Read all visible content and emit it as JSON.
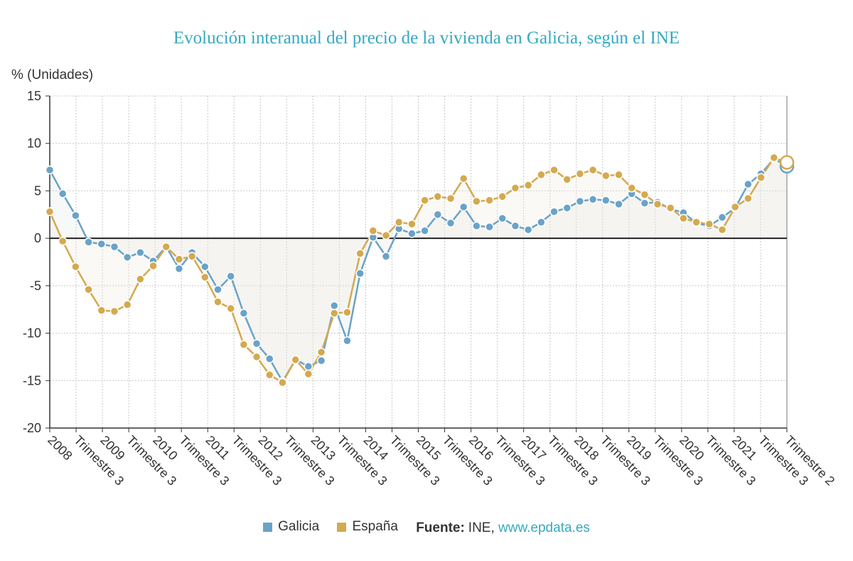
{
  "chart_data": {
    "type": "line",
    "title": "Evolución interanual del precio de la vivienda en Galicia, según el INE",
    "ylabel": "% (Unidades)",
    "ylim": [
      -20,
      15
    ],
    "yticks": [
      15,
      10,
      5,
      0,
      -5,
      -10,
      -15,
      -20
    ],
    "grid": true,
    "xtick_labels": [
      "2008",
      "Trimestre 3",
      "2009",
      "Trimestre 3",
      "2010",
      "Trimestre 3",
      "2011",
      "Trimestre 3",
      "2012",
      "Trimestre 3",
      "2013",
      "Trimestre 3",
      "2014",
      "Trimestre 3",
      "2015",
      "Trimestre 3",
      "2016",
      "Trimestre 3",
      "2017",
      "Trimestre 3",
      "2018",
      "Trimestre 3",
      "2019",
      "Trimestre 3",
      "2020",
      "Trimestre 3",
      "2021",
      "Trimestre 3",
      "Trimestre 2"
    ],
    "series": [
      {
        "name": "Galicia",
        "color": "#6aa3c8",
        "values": [
          7.2,
          4.7,
          2.4,
          -0.4,
          -0.6,
          -0.9,
          -2.0,
          -1.5,
          -2.4,
          -0.9,
          -3.2,
          -1.5,
          -3.0,
          -5.4,
          -4.0,
          -7.9,
          -11.1,
          -12.7,
          -15.1,
          -12.8,
          -13.5,
          -12.9,
          -7.1,
          -10.8,
          -3.7,
          0.1,
          -1.9,
          1.0,
          0.5,
          0.8,
          2.5,
          1.6,
          3.3,
          1.3,
          1.2,
          2.1,
          1.3,
          0.9,
          1.7,
          2.8,
          3.2,
          3.9,
          4.1,
          4.0,
          3.6,
          4.7,
          3.7,
          3.8,
          3.1,
          2.7,
          1.6,
          1.3,
          2.2,
          3.2,
          5.7,
          6.8,
          8.4,
          7.6
        ]
      },
      {
        "name": "España",
        "color": "#d4a94f",
        "values": [
          2.8,
          -0.3,
          -3.0,
          -5.4,
          -7.6,
          -7.7,
          -7.0,
          -4.3,
          -2.9,
          -0.9,
          -2.2,
          -1.9,
          -4.1,
          -6.7,
          -7.4,
          -11.2,
          -12.5,
          -14.4,
          -15.2,
          -12.8,
          -14.3,
          -12.0,
          -7.9,
          -7.8,
          -1.6,
          0.8,
          0.3,
          1.7,
          1.5,
          4.0,
          4.4,
          4.2,
          6.3,
          3.9,
          4.0,
          4.4,
          5.3,
          5.6,
          6.7,
          7.2,
          6.2,
          6.8,
          7.2,
          6.6,
          6.7,
          5.3,
          4.6,
          3.6,
          3.2,
          2.1,
          1.7,
          1.5,
          0.9,
          3.3,
          4.2,
          6.4,
          8.5,
          8.0
        ]
      }
    ]
  },
  "legend": {
    "source_label": "Fuente:",
    "source_value": "INE,",
    "source_link": "www.epdata.es"
  }
}
